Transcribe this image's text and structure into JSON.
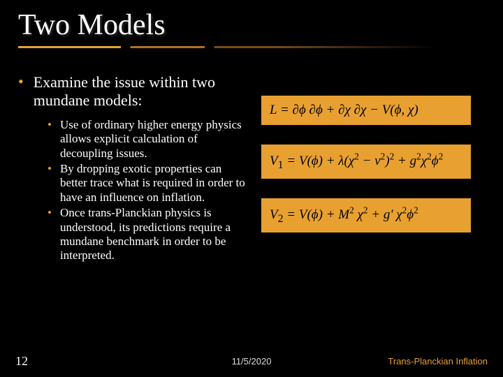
{
  "title": "Two Models",
  "colors": {
    "background": "#000000",
    "text": "#ffffff",
    "accent": "#e8a030",
    "equation_bg": "#e8a030",
    "equation_text": "#000000",
    "footer_text": "#dcdcdc"
  },
  "typography": {
    "title_fontsize": 42,
    "main_bullet_fontsize": 22,
    "sub_bullet_fontsize": 17,
    "equation_fontsize": 19,
    "footer_fontsize": 13,
    "font_family": "Times New Roman"
  },
  "main_bullet": "Examine the issue within two mundane models:",
  "sub_bullets": [
    "Use of ordinary higher energy physics allows explicit calculation of decoupling issues.",
    "By dropping exotic properties can better trace what is required in order to have an influence on inflation.",
    "Once trans-Planckian physics is understood, its predictions require a mundane benchmark in order to be interpreted."
  ],
  "equations": {
    "eq1": "L = ∂ϕ ∂ϕ + ∂χ ∂χ − V(ϕ, χ)",
    "eq2": "V₁ = V(ϕ) + λ(χ² − ν²)² + g²χ²ϕ²",
    "eq3": "V₂ = V(ϕ) + M² χ² + g' χ²ϕ²"
  },
  "footer": {
    "slide_number": "12",
    "date": "11/5/2020",
    "title": "Trans-Planckian Inflation"
  }
}
